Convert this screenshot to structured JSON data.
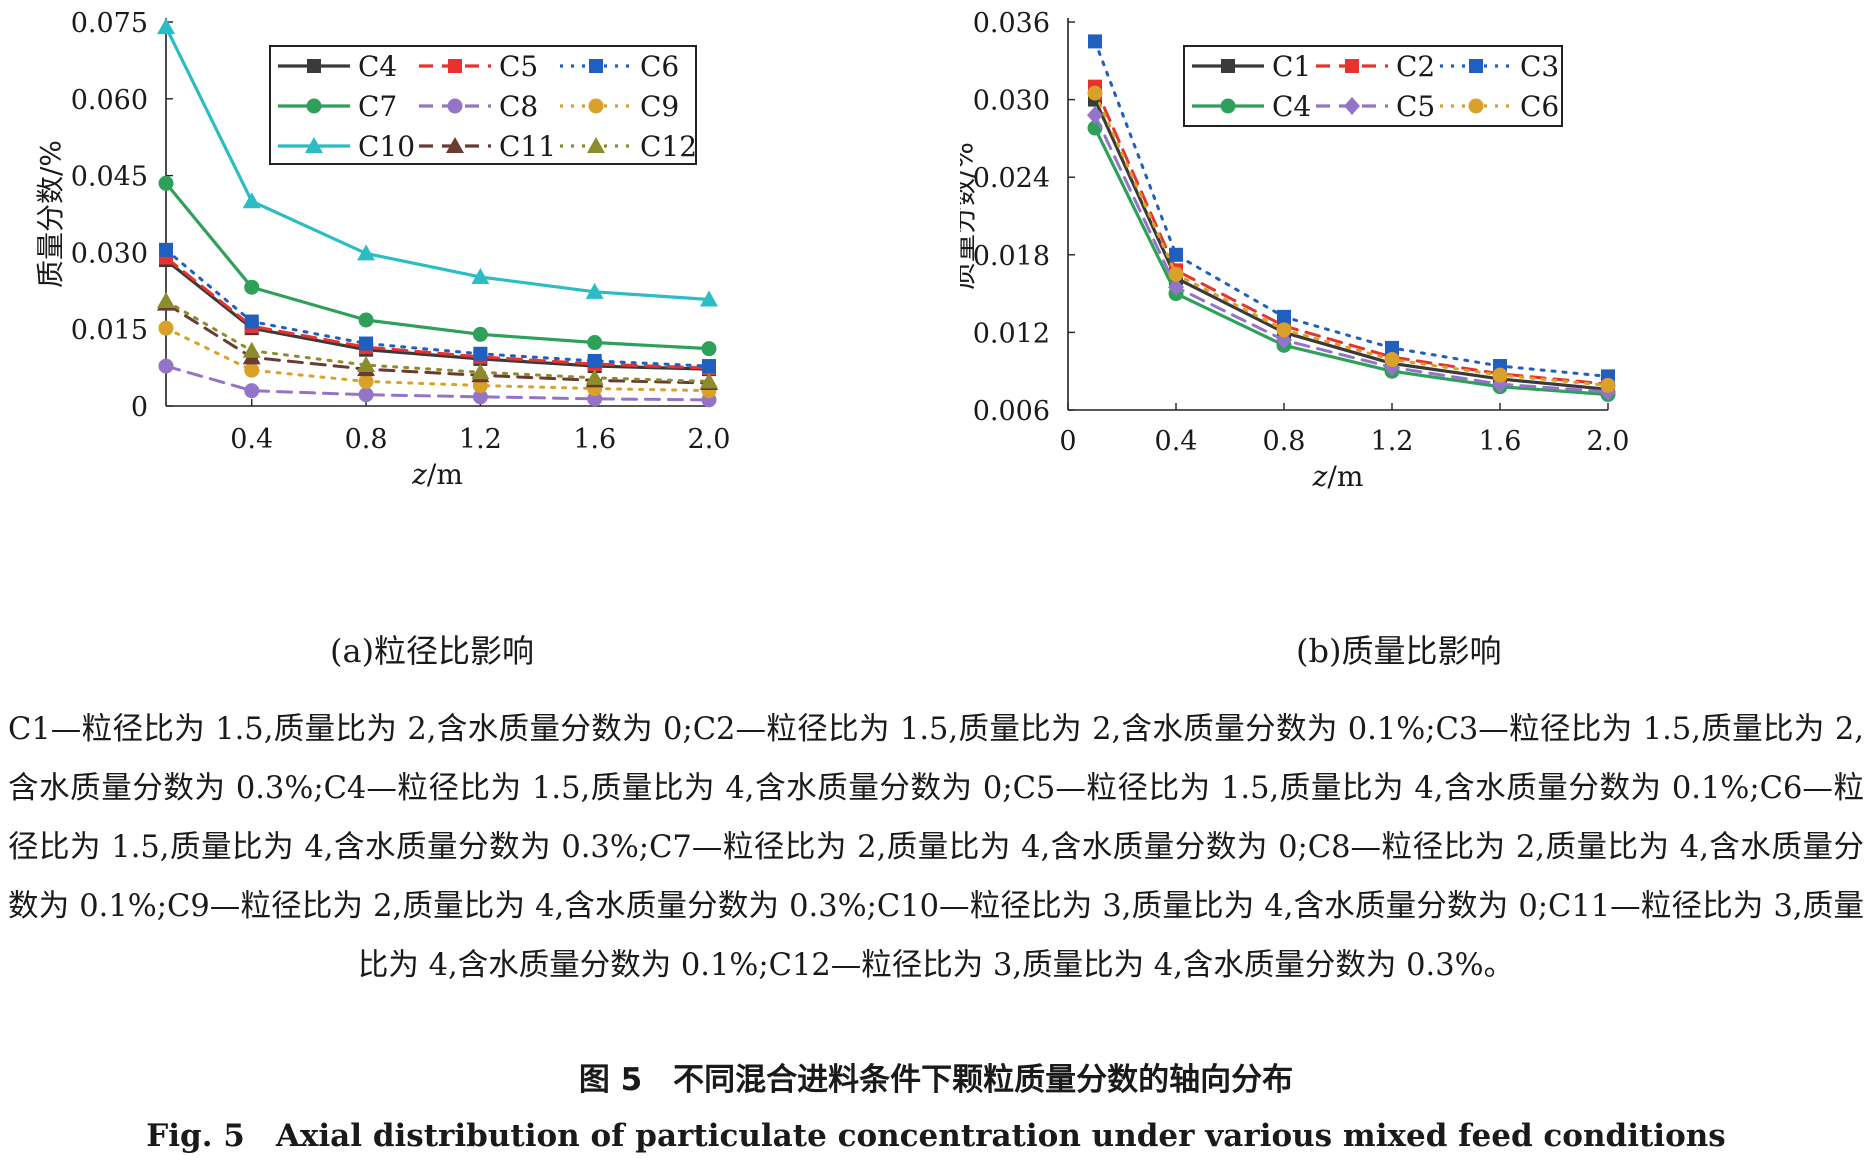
{
  "chart_data": [
    {
      "type": "line",
      "caption": "(a)粒径比影响",
      "xlabel_italic": "z",
      "xlabel_rest": "/m",
      "ylabel": "质量分数/%",
      "xlim": [
        0.1,
        2.0
      ],
      "ylim": [
        0,
        0.075
      ],
      "xticks": [
        0.4,
        0.8,
        1.2,
        1.6,
        2.0
      ],
      "xtick_labels": [
        "0.4",
        "0.8",
        "1.2",
        "1.6",
        "2.0"
      ],
      "yticks": [
        0,
        0.015,
        0.03,
        0.045,
        0.06,
        0.075
      ],
      "ytick_labels": [
        "0",
        "0.015",
        "0.030",
        "0.045",
        "0.060",
        "0.075"
      ],
      "legend": "top-right",
      "x": [
        0.1,
        0.4,
        0.8,
        1.2,
        1.6,
        2.0
      ],
      "series": [
        {
          "name": "C4",
          "color": "#3a3a3a",
          "dash": "solid",
          "marker": "square",
          "values": [
            0.0285,
            0.0152,
            0.011,
            0.0092,
            0.0078,
            0.0072
          ]
        },
        {
          "name": "C5",
          "color": "#e8322d",
          "dash": "dashed",
          "marker": "square",
          "values": [
            0.029,
            0.0156,
            0.0115,
            0.0096,
            0.0082,
            0.0074
          ]
        },
        {
          "name": "C6",
          "color": "#1f5fbf",
          "dash": "dotted",
          "marker": "square",
          "values": [
            0.0305,
            0.0165,
            0.0122,
            0.0102,
            0.0088,
            0.0078
          ]
        },
        {
          "name": "C7",
          "color": "#2ea05a",
          "dash": "solid",
          "marker": "circle",
          "values": [
            0.0435,
            0.0232,
            0.0168,
            0.014,
            0.0124,
            0.0112
          ]
        },
        {
          "name": "C8",
          "color": "#9474c8",
          "dash": "dashed",
          "marker": "circle",
          "values": [
            0.0078,
            0.003,
            0.0022,
            0.0018,
            0.0014,
            0.0012
          ]
        },
        {
          "name": "C9",
          "color": "#d9a02a",
          "dash": "dotted",
          "marker": "circle",
          "values": [
            0.0152,
            0.007,
            0.0048,
            0.004,
            0.0034,
            0.003
          ]
        },
        {
          "name": "C10",
          "color": "#2bbcc4",
          "dash": "solid",
          "marker": "triangle",
          "values": [
            0.074,
            0.04,
            0.0298,
            0.0252,
            0.0223,
            0.0208
          ]
        },
        {
          "name": "C11",
          "color": "#6b3a33",
          "dash": "dashed",
          "marker": "triangle",
          "values": [
            0.02,
            0.0095,
            0.0072,
            0.006,
            0.005,
            0.0045
          ]
        },
        {
          "name": "C12",
          "color": "#8c8c2c",
          "dash": "dotted",
          "marker": "triangle",
          "values": [
            0.0205,
            0.0108,
            0.008,
            0.0066,
            0.0055,
            0.0048
          ]
        }
      ]
    },
    {
      "type": "line",
      "caption": "(b)质量比影响",
      "xlabel_italic": "z",
      "xlabel_rest": "/m",
      "ylabel": "质量分数/%",
      "xlim": [
        0,
        2.0
      ],
      "ylim": [
        0.006,
        0.036
      ],
      "xticks": [
        0,
        0.4,
        0.8,
        1.2,
        1.6,
        2.0
      ],
      "xtick_labels": [
        "0",
        "0.4",
        "0.8",
        "1.2",
        "1.6",
        "2.0"
      ],
      "yticks": [
        0.006,
        0.012,
        0.018,
        0.024,
        0.03,
        0.036
      ],
      "ytick_labels": [
        "0.006",
        "0.012",
        "0.018",
        "0.024",
        "0.030",
        "0.036"
      ],
      "legend": "top-right",
      "x": [
        0.1,
        0.4,
        0.8,
        1.2,
        1.6,
        2.0
      ],
      "series": [
        {
          "name": "C1",
          "color": "#3a3a3a",
          "dash": "solid",
          "marker": "square",
          "values": [
            0.03,
            0.0162,
            0.012,
            0.0096,
            0.0084,
            0.0076
          ]
        },
        {
          "name": "C2",
          "color": "#e8322d",
          "dash": "dashed",
          "marker": "square",
          "values": [
            0.031,
            0.0168,
            0.0125,
            0.0101,
            0.0088,
            0.008
          ]
        },
        {
          "name": "C3",
          "color": "#1f5fbf",
          "dash": "dotted",
          "marker": "square",
          "values": [
            0.0345,
            0.018,
            0.0132,
            0.0108,
            0.0094,
            0.0086
          ]
        },
        {
          "name": "C4",
          "color": "#2ea05a",
          "dash": "solid",
          "marker": "circle",
          "values": [
            0.0278,
            0.015,
            0.011,
            0.009,
            0.0078,
            0.0072
          ]
        },
        {
          "name": "C5",
          "color": "#9474c8",
          "dash": "dashed",
          "marker": "diamond",
          "values": [
            0.0288,
            0.0155,
            0.0114,
            0.0093,
            0.008,
            0.0074
          ]
        },
        {
          "name": "C6",
          "color": "#d9a02a",
          "dash": "dotted",
          "marker": "circle",
          "values": [
            0.0305,
            0.0165,
            0.0122,
            0.0099,
            0.0087,
            0.0079
          ]
        }
      ]
    }
  ],
  "notes": "C1—粒径比为 1.5,质量比为 2,含水质量分数为 0;C2—粒径比为 1.5,质量比为 2,含水质量分数为 0.1%;C3—粒径比为 1.5,质量比为 2,含水质量分数为 0.3%;C4—粒径比为 1.5,质量比为 4,含水质量分数为 0;C5—粒径比为 1.5,质量比为 4,含水质量分数为 0.1%;C6—粒径比为 1.5,质量比为 4,含水质量分数为 0.3%;C7—粒径比为 2,质量比为 4,含水质量分数为 0;C8—粒径比为 2,质量比为 4,含水质量分数为 0.1%;C9—粒径比为 2,质量比为 4,含水质量分数为 0.3%;C10—粒径比为 3,质量比为 4,含水质量分数为 0;C11—粒径比为 3,质量比为 4,含水质量分数为 0.1%;C12—粒径比为 3,质量比为 4,含水质量分数为 0.3%。",
  "figure_title_cn": "图 5　不同混合进料条件下颗粒质量分数的轴向分布",
  "figure_title_en": "Fig. 5　Axial distribution of particulate concentration under various mixed feed conditions"
}
